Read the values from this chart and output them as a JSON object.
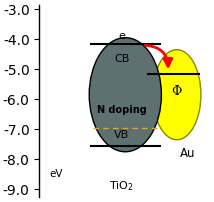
{
  "ylabel": "eV",
  "tio2_label": "TiO$_2$",
  "au_label": "Au",
  "phi_label": "Φ",
  "e_label": "e",
  "cb_label": "CB",
  "vb_label": "VB",
  "ndoping_label": "N doping",
  "ylim_min": -9.25,
  "ylim_max": -2.85,
  "yticks": [
    -3.0,
    -4.0,
    -5.0,
    -6.0,
    -7.0,
    -8.0,
    -9.0
  ],
  "tio2_color": "#5f7070",
  "au_color": "#ffff00",
  "cb_level": -4.15,
  "vb_level": -7.55,
  "au_level": -5.15,
  "ndoping_level": -6.95,
  "background_color": "#ffffff"
}
